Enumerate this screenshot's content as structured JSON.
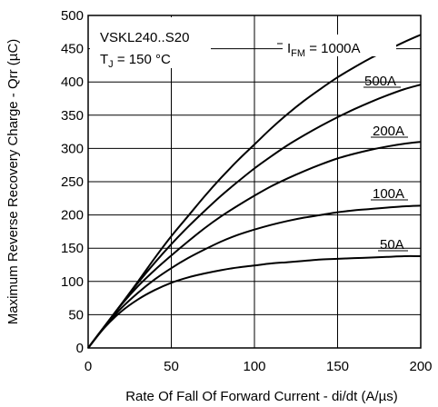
{
  "chart_data": {
    "type": "line",
    "xlabel": "Rate Of Fall Of Forward Current - di/dt (A/µs)",
    "ylabel": "Maximum Reverse Recovery Charge - Qrr (µC)",
    "xlim": [
      0,
      200
    ],
    "ylim": [
      0,
      500
    ],
    "xticks": [
      0,
      50,
      100,
      150,
      200
    ],
    "yticks": [
      0,
      50,
      100,
      150,
      200,
      250,
      300,
      350,
      400,
      450,
      500
    ],
    "grid": true,
    "device_label": "VSKL240..S20",
    "temperature_label": {
      "main": "T",
      "sub": "J",
      "rest": " = 150 °C"
    },
    "series_param_label": {
      "main": "I",
      "sub": "FM",
      "rest": " = "
    },
    "x": [
      0,
      10,
      20,
      30,
      40,
      50,
      60,
      70,
      80,
      90,
      100,
      110,
      120,
      130,
      140,
      150,
      160,
      170,
      180,
      190,
      200
    ],
    "series": [
      {
        "name": "1000A",
        "values": [
          0,
          33,
          66,
          100,
          135,
          168,
          198,
          228,
          256,
          282,
          306,
          330,
          352,
          372,
          390,
          407,
          422,
          436,
          448,
          460,
          471
        ]
      },
      {
        "name": "500A",
        "values": [
          0,
          33,
          66,
          98,
          128,
          156,
          182,
          206,
          229,
          250,
          270,
          288,
          305,
          320,
          334,
          347,
          359,
          370,
          380,
          389,
          396
        ]
      },
      {
        "name": "200A",
        "values": [
          0,
          33,
          65,
          93,
          117,
          139,
          160,
          180,
          198,
          214,
          229,
          243,
          255,
          266,
          276,
          285,
          292,
          298,
          303,
          307,
          310
        ]
      },
      {
        "name": "100A",
        "values": [
          0,
          32,
          60,
          83,
          103,
          120,
          135,
          148,
          160,
          170,
          178,
          185,
          191,
          196,
          200,
          204,
          207,
          209,
          211,
          213,
          214
        ]
      },
      {
        "name": "50A",
        "values": [
          0,
          31,
          55,
          73,
          87,
          98,
          106,
          112,
          117,
          121,
          124,
          127,
          129,
          131,
          133,
          134,
          135,
          136,
          137,
          138,
          138
        ]
      }
    ]
  }
}
